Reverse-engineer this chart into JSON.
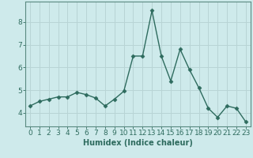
{
  "x": [
    0,
    1,
    2,
    3,
    4,
    5,
    6,
    7,
    8,
    9,
    10,
    11,
    12,
    13,
    14,
    15,
    16,
    17,
    18,
    19,
    20,
    21,
    22,
    23
  ],
  "y": [
    4.3,
    4.5,
    4.6,
    4.7,
    4.7,
    4.9,
    4.8,
    4.65,
    4.3,
    4.6,
    4.95,
    6.5,
    6.5,
    8.5,
    6.5,
    5.4,
    6.8,
    5.9,
    5.1,
    4.2,
    3.8,
    4.3,
    4.2,
    3.6
  ],
  "line_color": "#2e6b5e",
  "marker": "D",
  "markersize": 2.5,
  "linewidth": 1.0,
  "xlabel": "Humidex (Indice chaleur)",
  "xlabel_fontsize": 7,
  "ylabel_ticks": [
    4,
    5,
    6,
    7,
    8
  ],
  "xlim": [
    -0.5,
    23.5
  ],
  "ylim": [
    3.4,
    8.9
  ],
  "bg_color": "#ceeaeb",
  "grid_color": "#b8d4d5",
  "tick_fontsize": 6.5,
  "spine_color": "#5a8a80",
  "xlabel_color": "#2e6b5e"
}
